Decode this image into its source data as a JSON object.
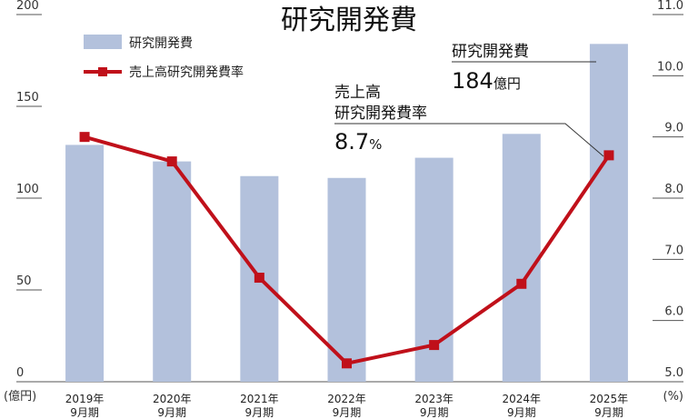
{
  "chart_data": {
    "type": "bar",
    "title": "研究開発費",
    "categories": [
      {
        "year": "2019年",
        "period": "9月期"
      },
      {
        "year": "2020年",
        "period": "9月期"
      },
      {
        "year": "2021年",
        "period": "9月期"
      },
      {
        "year": "2022年",
        "period": "9月期"
      },
      {
        "year": "2023年",
        "period": "9月期"
      },
      {
        "year": "2024年",
        "period": "9月期"
      },
      {
        "year": "2025年",
        "period": "9月期"
      }
    ],
    "series": [
      {
        "name": "研究開発費",
        "type": "bar",
        "axis": "left",
        "values": [
          129,
          120,
          112,
          111,
          122,
          135,
          184
        ],
        "color": "#b3c1dc"
      },
      {
        "name": "売上高研究開発費率",
        "type": "line",
        "axis": "right",
        "values": [
          9.0,
          8.6,
          6.7,
          5.3,
          5.6,
          6.6,
          8.7
        ],
        "color": "#c0101a"
      }
    ],
    "left_axis": {
      "ticks": [
        "200",
        "150",
        "100",
        "50",
        "0"
      ],
      "min": 0,
      "max": 200,
      "unit": "(億円)"
    },
    "right_axis": {
      "ticks": [
        "11.0",
        "10.0",
        "9.0",
        "8.0",
        "7.0",
        "6.0",
        "5.0"
      ],
      "min": 5.0,
      "max": 11.0,
      "unit": "(%)"
    },
    "legend": {
      "position": "top-left",
      "items": [
        "研究開発費",
        "売上高研究開発費率"
      ]
    },
    "annotations": {
      "ratio": {
        "line1": "売上高",
        "line2": "研究開発費率",
        "value": "8.7",
        "unit": "%"
      },
      "amount": {
        "label": "研究開発費",
        "value": "184",
        "unit": "億円"
      }
    }
  }
}
